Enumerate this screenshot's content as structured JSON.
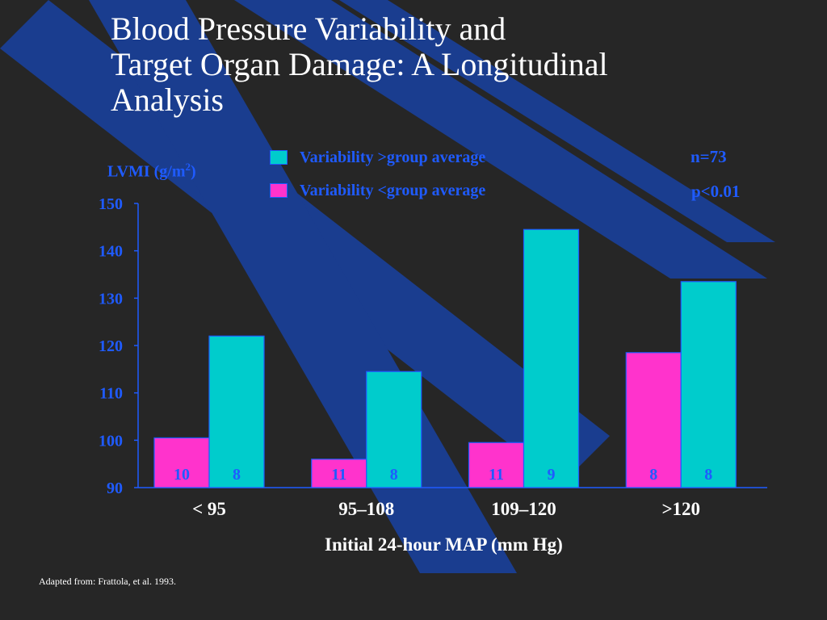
{
  "slide": {
    "title_lines": [
      "Blood Pressure Variability and",
      "Target Organ Damage: A Longitudinal",
      "Analysis"
    ],
    "ylabel_prefix": "LVMI (g/m",
    "ylabel_sup": "2",
    "ylabel_suffix": ")",
    "n_text": "n=73",
    "p_text": "p<0.01",
    "source": "Adapted from: Frattola, et al. 1993.",
    "colors": {
      "background": "#262626",
      "stripe": "#1a3d8f",
      "axis_text": "#1f5bff",
      "series_above": "#00cccc",
      "series_below": "#ff33cc",
      "title": "#ffffff"
    }
  },
  "chart_data": {
    "type": "bar",
    "title": "",
    "xlabel": "Initial 24-hour MAP (mm Hg)",
    "ylabel": "LVMI (g/m2)",
    "categories": [
      "< 95",
      "95–108",
      "109–120",
      ">120"
    ],
    "ylim": [
      90,
      150
    ],
    "yticks": [
      90,
      100,
      110,
      120,
      130,
      140,
      150
    ],
    "grid": false,
    "legend_position": "top",
    "series": [
      {
        "name": "Variability <group average",
        "color": "#ff33cc",
        "values": [
          100.5,
          96,
          99.5,
          118.5
        ],
        "counts": [
          "10",
          "11",
          "11",
          "8"
        ]
      },
      {
        "name": "Variability >group average",
        "color": "#00cccc",
        "values": [
          122,
          114.5,
          144.5,
          133.5
        ],
        "counts": [
          "8",
          "8",
          "9",
          "8"
        ]
      }
    ]
  }
}
